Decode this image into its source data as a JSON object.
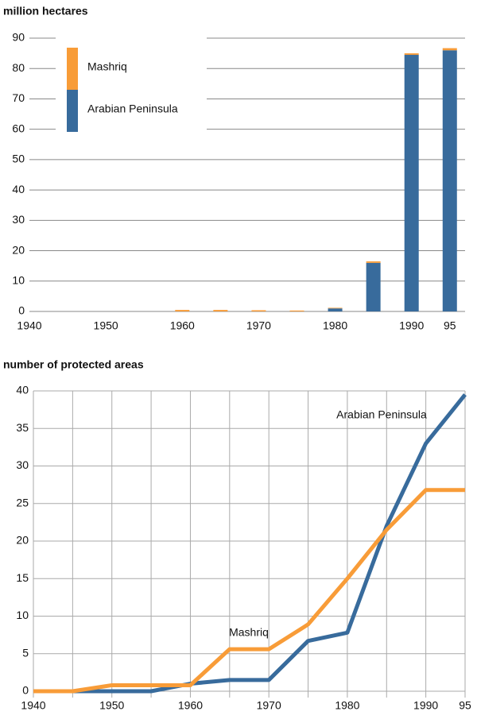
{
  "chart_data": [
    {
      "type": "bar",
      "stacked": true,
      "title": "million hectares",
      "x": [
        1960,
        1965,
        1970,
        1975,
        1980,
        1985,
        1990,
        1995
      ],
      "series": [
        {
          "name": "Arabian Peninsula",
          "color": "#386b9c",
          "values": [
            0,
            0,
            0,
            0,
            1,
            16,
            84.5,
            86
          ]
        },
        {
          "name": "Mashriq",
          "color": "#f89c38",
          "values": [
            0.5,
            0.5,
            0.4,
            0.3,
            0.2,
            0.5,
            0.5,
            0.7
          ]
        }
      ],
      "xlim": [
        1940,
        1997
      ],
      "xticks": [
        1940,
        1950,
        1960,
        1970,
        1980,
        1990,
        {
          "value": 1995,
          "label": "95"
        }
      ],
      "ylim": [
        0,
        90
      ],
      "yticks": [
        0,
        10,
        20,
        30,
        40,
        50,
        60,
        70,
        80,
        90
      ],
      "grid": true,
      "legend": "upper left"
    },
    {
      "type": "line",
      "title": "number of protected areas",
      "x": [
        1940,
        1945,
        1950,
        1955,
        1960,
        1965,
        1970,
        1975,
        1980,
        1985,
        1990,
        1995
      ],
      "series": [
        {
          "name": "Arabian Peninsula",
          "color": "#386b9c",
          "values": [
            0,
            0,
            0,
            0,
            1,
            1.5,
            1.5,
            6.7,
            7.8,
            22,
            33,
            39.5
          ]
        },
        {
          "name": "Mashriq",
          "color": "#f89c38",
          "values": [
            0,
            0,
            0.8,
            0.8,
            0.8,
            5.6,
            5.6,
            8.9,
            15,
            21.5,
            26.8,
            26.8
          ]
        }
      ],
      "xlim": [
        1940,
        1995
      ],
      "xticks": [
        1940,
        1950,
        1960,
        1970,
        1980,
        1990,
        {
          "value": 1995,
          "label": "95"
        }
      ],
      "ylim": [
        0,
        40
      ],
      "yticks": [
        0,
        5,
        10,
        15,
        20,
        25,
        30,
        35,
        40
      ],
      "grid": true
    }
  ]
}
